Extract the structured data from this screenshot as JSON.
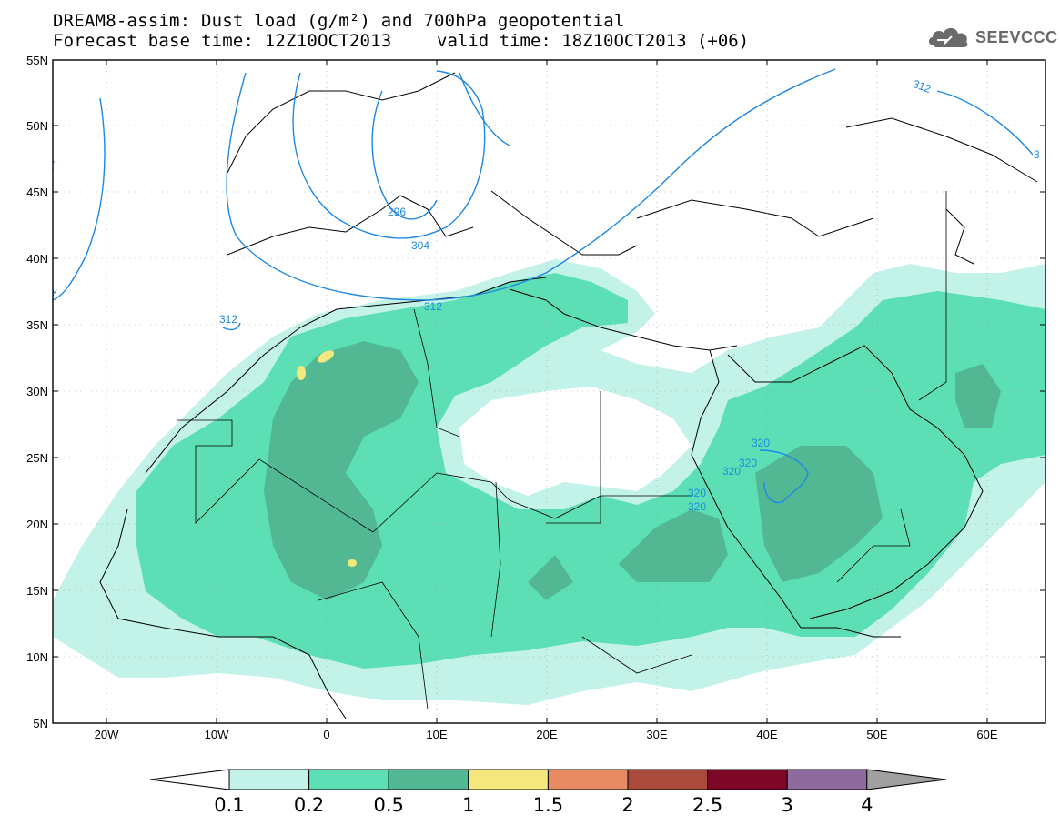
{
  "header": {
    "title_line1": "DREAM8-assim: Dust load (g/m²) and 700hPa geopotential",
    "title_line2": "Forecast base time: 12Z10OCT2013",
    "valid_time": "valid time: 18Z10OCT2013 (+06)",
    "logo_text": "SEEVCCC",
    "logo_icon": "cloud-logo-icon"
  },
  "map": {
    "lat_ticks": [
      "55N",
      "50N",
      "45N",
      "40N",
      "35N",
      "30N",
      "25N",
      "20N",
      "15N",
      "10N",
      "5N"
    ],
    "lon_ticks": [
      "20W",
      "10W",
      "0",
      "10E",
      "20E",
      "30E",
      "40E",
      "50E",
      "60E"
    ],
    "contour_labels": [
      {
        "text": "312"
      },
      {
        "text": "304"
      },
      {
        "text": "296"
      },
      {
        "text": "304"
      },
      {
        "text": "312"
      },
      {
        "text": "312"
      },
      {
        "text": "312"
      },
      {
        "text": "3"
      },
      {
        "text": "320"
      },
      {
        "text": "320"
      },
      {
        "text": "320"
      },
      {
        "text": "320"
      },
      {
        "text": "320"
      }
    ],
    "colors": {
      "land_line": "#000000",
      "contour": "#1e88e5",
      "grid": "#9a9a9a"
    }
  },
  "colorbar": {
    "bins": [
      {
        "color": "#c2f2e8"
      },
      {
        "color": "#5cdfb4"
      },
      {
        "color": "#52b893"
      },
      {
        "color": "#f4e77c"
      },
      {
        "color": "#e88a62"
      },
      {
        "color": "#aa4a3c"
      },
      {
        "color": "#7e0626"
      },
      {
        "color": "#8e6a9e"
      }
    ],
    "left_arrow_color": "#ffffff",
    "right_arrow_color": "#a0a0a0",
    "labels": [
      "0.1",
      "0.2",
      "0.5",
      "1",
      "1.5",
      "2",
      "2.5",
      "3",
      "4"
    ]
  }
}
